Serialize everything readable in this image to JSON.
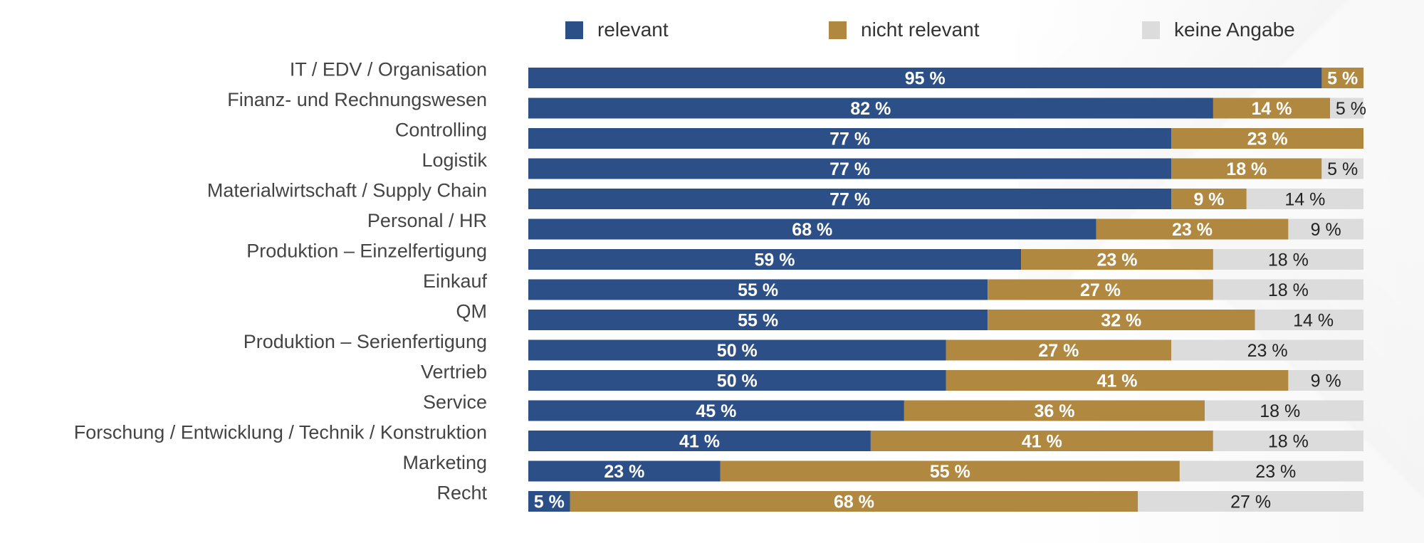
{
  "colors": {
    "relevant": "#2c4f88",
    "nicht_relevant": "#b08840",
    "keine_angabe": "#dcdcdc",
    "category_text": "#444444",
    "label_on_dark": "#ffffff",
    "label_on_light": "#222222"
  },
  "chart_data": {
    "type": "bar",
    "orientation": "horizontal",
    "stacked": true,
    "value_suffix": " %",
    "legend_position": "top",
    "xlim": [
      0,
      100
    ],
    "grid": false,
    "categories": [
      "IT / EDV / Organisation",
      "Finanz- und Rechnungswesen",
      "Controlling",
      "Logistik",
      "Materialwirtschaft / Supply Chain",
      "Personal / HR",
      "Produktion – Einzelfertigung",
      "Einkauf",
      "QM",
      "Produktion – Serienfertigung",
      "Vertrieb",
      "Service",
      "Forschung / Entwicklung / Technik / Konstruktion",
      "Marketing",
      "Recht"
    ],
    "series": [
      {
        "name": "relevant",
        "color_key": "relevant",
        "values": [
          95,
          82,
          77,
          77,
          77,
          68,
          59,
          55,
          55,
          50,
          50,
          45,
          41,
          23,
          5
        ]
      },
      {
        "name": "nicht relevant",
        "color_key": "nicht_relevant",
        "values": [
          5,
          14,
          23,
          18,
          9,
          23,
          23,
          27,
          32,
          27,
          41,
          36,
          41,
          55,
          68
        ]
      },
      {
        "name": "keine Angabe",
        "color_key": "keine_angabe",
        "values": [
          0,
          5,
          0,
          5,
          14,
          9,
          18,
          18,
          14,
          23,
          9,
          18,
          18,
          23,
          27
        ]
      }
    ]
  }
}
